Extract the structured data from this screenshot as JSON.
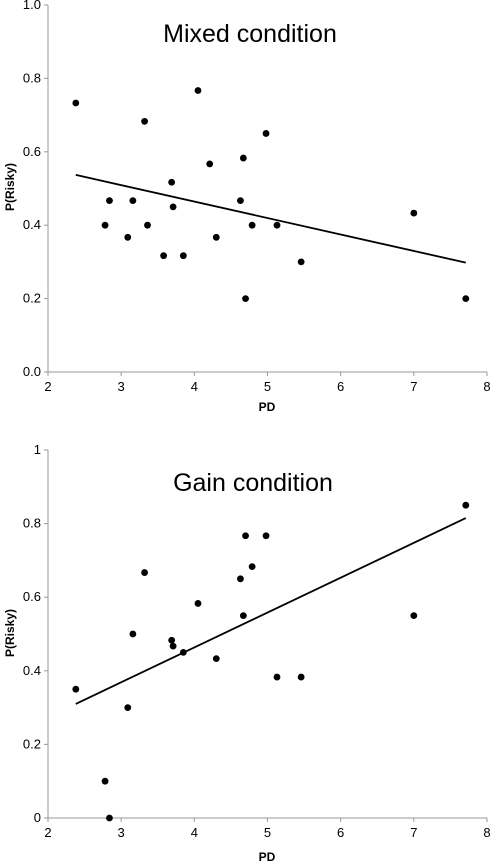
{
  "chart_data": [
    {
      "type": "scatter",
      "title": "Mixed condition",
      "xlabel": "PD",
      "ylabel": "P(Risky)",
      "xlim": [
        2,
        8
      ],
      "ylim": [
        0,
        1
      ],
      "xticks": [
        "2",
        "3",
        "4",
        "5",
        "6",
        "7",
        "8"
      ],
      "yticks": [
        "0.0",
        "0.2",
        "0.4",
        "0.6",
        "0.8",
        "1.0"
      ],
      "grid": false,
      "points": [
        {
          "x": 2.38,
          "y": 0.733
        },
        {
          "x": 2.78,
          "y": 0.4
        },
        {
          "x": 2.84,
          "y": 0.467
        },
        {
          "x": 3.09,
          "y": 0.367
        },
        {
          "x": 3.16,
          "y": 0.467
        },
        {
          "x": 3.32,
          "y": 0.683
        },
        {
          "x": 3.36,
          "y": 0.4
        },
        {
          "x": 3.58,
          "y": 0.317
        },
        {
          "x": 3.69,
          "y": 0.517
        },
        {
          "x": 3.71,
          "y": 0.45
        },
        {
          "x": 3.85,
          "y": 0.317
        },
        {
          "x": 4.05,
          "y": 0.767
        },
        {
          "x": 4.21,
          "y": 0.567
        },
        {
          "x": 4.3,
          "y": 0.367
        },
        {
          "x": 4.63,
          "y": 0.467
        },
        {
          "x": 4.67,
          "y": 0.583
        },
        {
          "x": 4.7,
          "y": 0.2
        },
        {
          "x": 4.79,
          "y": 0.4
        },
        {
          "x": 4.98,
          "y": 0.65
        },
        {
          "x": 5.13,
          "y": 0.4
        },
        {
          "x": 5.46,
          "y": 0.3
        },
        {
          "x": 7.0,
          "y": 0.433
        },
        {
          "x": 7.71,
          "y": 0.2
        }
      ],
      "trendline": {
        "x": [
          2.38,
          7.71
        ],
        "y": [
          0.537,
          0.298
        ]
      }
    },
    {
      "type": "scatter",
      "title": "Gain condition",
      "xlabel": "PD",
      "ylabel": "P(Risky)",
      "xlim": [
        2,
        8
      ],
      "ylim": [
        0,
        1
      ],
      "xticks": [
        "2",
        "3",
        "4",
        "5",
        "6",
        "7",
        "8"
      ],
      "yticks": [
        "0",
        "0.2",
        "0.4",
        "0.6",
        "0.8",
        "1"
      ],
      "grid": false,
      "points": [
        {
          "x": 2.38,
          "y": 0.35
        },
        {
          "x": 2.78,
          "y": 0.1
        },
        {
          "x": 2.84,
          "y": 0.0
        },
        {
          "x": 3.09,
          "y": 0.3
        },
        {
          "x": 3.16,
          "y": 0.5
        },
        {
          "x": 3.32,
          "y": 0.667
        },
        {
          "x": 3.69,
          "y": 0.483
        },
        {
          "x": 3.71,
          "y": 0.467
        },
        {
          "x": 3.85,
          "y": 0.45
        },
        {
          "x": 4.05,
          "y": 0.583
        },
        {
          "x": 4.3,
          "y": 0.433
        },
        {
          "x": 4.63,
          "y": 0.65
        },
        {
          "x": 4.67,
          "y": 0.55
        },
        {
          "x": 4.7,
          "y": 0.767
        },
        {
          "x": 4.79,
          "y": 0.683
        },
        {
          "x": 4.98,
          "y": 0.767
        },
        {
          "x": 5.13,
          "y": 0.383
        },
        {
          "x": 5.46,
          "y": 0.383
        },
        {
          "x": 7.0,
          "y": 0.55
        },
        {
          "x": 7.71,
          "y": 0.85
        }
      ],
      "trendline": {
        "x": [
          2.38,
          7.71
        ],
        "y": [
          0.31,
          0.815
        ]
      }
    }
  ]
}
